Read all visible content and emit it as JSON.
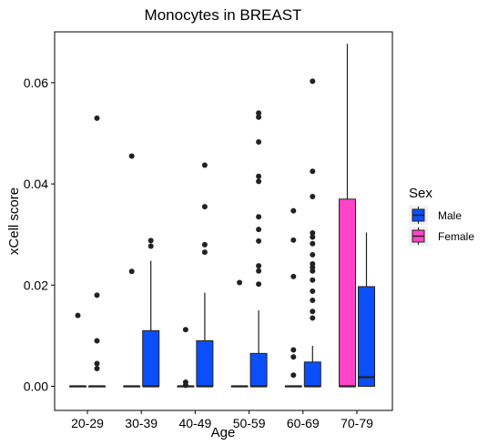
{
  "chart_data": {
    "type": "box",
    "title": "Monocytes in BREAST",
    "xlabel": "Age",
    "ylabel": "xCell score",
    "ylim": [
      -0.002,
      0.07
    ],
    "yticks": [
      0.0,
      0.02,
      0.04,
      0.06
    ],
    "ytick_labels": [
      "0.00",
      "0.02",
      "0.04",
      "0.06"
    ],
    "grid": false,
    "categories": [
      "20-29",
      "30-39",
      "40-49",
      "50-59",
      "60-69",
      "70-79"
    ],
    "legend": {
      "title": "Sex",
      "position": "right",
      "entries": [
        {
          "label": "Male",
          "color": "#0a4ffa"
        },
        {
          "label": "Female",
          "color": "#ff44c8"
        }
      ]
    },
    "boxes": [
      {
        "category": "20-29",
        "series": "Female",
        "q1": 0,
        "median": 0,
        "q3": 0,
        "whisker_low": 0,
        "whisker_high": 0,
        "outliers": [
          0.014
        ]
      },
      {
        "category": "20-29",
        "series": "Male",
        "q1": 0,
        "median": 0,
        "q3": 0,
        "whisker_low": 0,
        "whisker_high": 0,
        "outliers": [
          0.053,
          0.018,
          0.009,
          0.0045,
          0.0035
        ]
      },
      {
        "category": "30-39",
        "series": "Female",
        "q1": 0,
        "median": 0,
        "q3": 0,
        "whisker_low": 0,
        "whisker_high": 0,
        "outliers": [
          0.0455,
          0.0227
        ]
      },
      {
        "category": "30-39",
        "series": "Male",
        "q1": 0,
        "median": 0,
        "q3": 0.011,
        "whisker_low": 0,
        "whisker_high": 0.0248,
        "outliers": [
          0.0288,
          0.0277
        ]
      },
      {
        "category": "40-49",
        "series": "Female",
        "q1": 0,
        "median": 0,
        "q3": 0,
        "whisker_low": 0,
        "whisker_high": 0,
        "outliers": [
          0.0112,
          0.0008,
          0.0002
        ]
      },
      {
        "category": "40-49",
        "series": "Male",
        "q1": 0,
        "median": 0,
        "q3": 0.009,
        "whisker_low": 0,
        "whisker_high": 0.0185,
        "outliers": [
          0.0437,
          0.0355,
          0.028,
          0.0265
        ]
      },
      {
        "category": "50-59",
        "series": "Female",
        "q1": 0,
        "median": 0,
        "q3": 0,
        "whisker_low": 0,
        "whisker_high": 0,
        "outliers": [
          0.0205
        ]
      },
      {
        "category": "50-59",
        "series": "Male",
        "q1": 0,
        "median": 0,
        "q3": 0.0065,
        "whisker_low": 0,
        "whisker_high": 0.015,
        "outliers": [
          0.054,
          0.0532,
          0.0483,
          0.0415,
          0.0405,
          0.0335,
          0.031,
          0.0287,
          0.0238,
          0.0228,
          0.0202
        ]
      },
      {
        "category": "60-69",
        "series": "Female",
        "q1": 0,
        "median": 0,
        "q3": 0,
        "whisker_low": 0,
        "whisker_high": 0,
        "outliers": [
          0.0347,
          0.0289,
          0.0217,
          0.0072,
          0.0058,
          0.0022
        ]
      },
      {
        "category": "60-69",
        "series": "Male",
        "q1": 0,
        "median": 0,
        "q3": 0.0048,
        "whisker_low": 0,
        "whisker_high": 0.008,
        "outliers": [
          0.0603,
          0.0425,
          0.0375,
          0.0303,
          0.0295,
          0.0282,
          0.026,
          0.0242,
          0.0235,
          0.0228,
          0.021,
          0.0188,
          0.017,
          0.0148,
          0.0135
        ]
      },
      {
        "category": "70-79",
        "series": "Female",
        "q1": 0,
        "median": 0,
        "q3": 0.037,
        "whisker_low": 0,
        "whisker_high": 0.0677,
        "outliers": []
      },
      {
        "category": "70-79",
        "series": "Male",
        "q1": 0,
        "median": 0.0018,
        "q3": 0.0197,
        "whisker_low": 0,
        "whisker_high": 0.0304,
        "outliers": []
      }
    ]
  }
}
